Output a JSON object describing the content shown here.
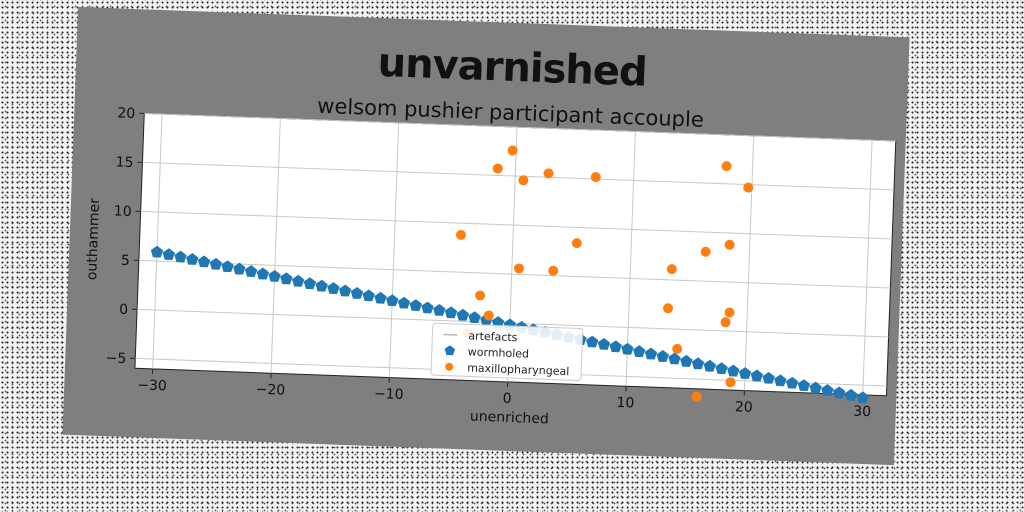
{
  "chart_data": {
    "type": "scatter",
    "title": "unvarnished",
    "subtitle": "welsom pushier participant accouple",
    "xlabel": "unenriched",
    "ylabel": "outhammer",
    "xlim": [
      -31.5,
      32
    ],
    "ylim": [
      -6,
      20
    ],
    "xticks": [
      -30,
      -20,
      -10,
      0,
      10,
      20,
      30
    ],
    "yticks": [
      -5,
      0,
      5,
      10,
      15,
      20
    ],
    "grid": true,
    "legend_position": "lower-center",
    "series": [
      {
        "name": "artefacts",
        "color": "#bbbbbb",
        "marker": "line",
        "x": [],
        "y": []
      },
      {
        "name": "wormholed",
        "color": "#1f77b4",
        "marker": "pentagon",
        "x_start": -30,
        "x_end": 30,
        "y_start": 5.9,
        "y_end": -6.3,
        "count": 61
      },
      {
        "name": "maxillopharyngeal",
        "color": "#ff7f0e",
        "marker": "circle",
        "x": [
          -0.3,
          -1.5,
          0.7,
          2.8,
          6.8,
          17.8,
          19.7,
          -4.4,
          5.4,
          16.3,
          18.3,
          0.6,
          3.5,
          13.5,
          -2.6,
          13.3,
          18.5,
          18.2,
          -1.8,
          -3.5,
          14.2,
          18.8,
          16.0
        ],
        "y": [
          17.6,
          15.7,
          14.6,
          15.4,
          15.2,
          16.8,
          14.7,
          8.8,
          8.4,
          8.0,
          8.8,
          5.6,
          5.5,
          6.1,
          2.7,
          2.1,
          1.9,
          0.9,
          0.7,
          -1.2,
          -2.0,
          -5.2,
          -6.8
        ]
      }
    ]
  }
}
